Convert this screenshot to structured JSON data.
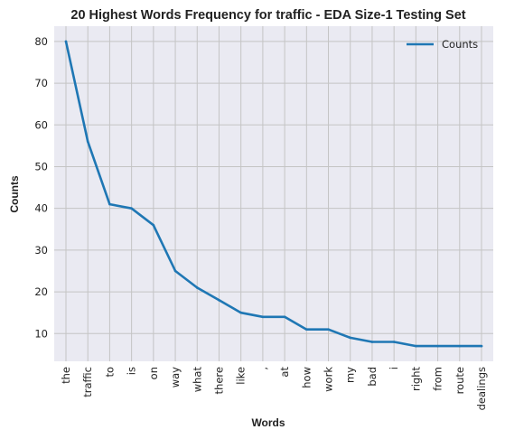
{
  "chart_data": {
    "type": "line",
    "title": "20 Highest Words Frequency for traffic - EDA Size-1 Testing Set",
    "xlabel": "Words",
    "ylabel": "Counts",
    "categories": [
      "the",
      "traffic",
      "to",
      "is",
      "on",
      "way",
      "what",
      "there",
      "like",
      ",",
      "at",
      "how",
      "work",
      "my",
      "bad",
      "i",
      "right",
      "from",
      "route",
      "dealings"
    ],
    "series": [
      {
        "name": "Counts",
        "values": [
          80,
          56,
          41,
          40,
          36,
          25,
          21,
          18,
          15,
          14,
          14,
          11,
          11,
          9,
          8,
          8,
          7,
          7,
          7,
          7
        ]
      }
    ],
    "y_ticks": [
      10,
      20,
      30,
      40,
      50,
      60,
      70,
      80
    ],
    "ylim": [
      3.35,
      83.65
    ],
    "grid": true,
    "legend_position": "top-right",
    "colors": {
      "line": "#1f77b4",
      "plot_background": "#eaeaf2",
      "grid": "#c4c4c4"
    }
  }
}
